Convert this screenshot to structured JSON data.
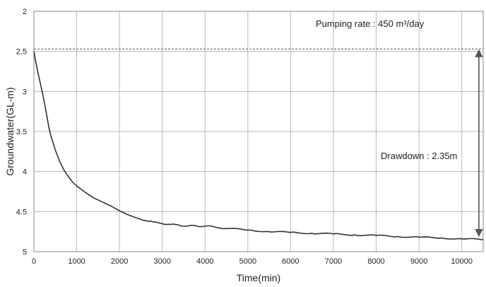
{
  "chart_data": {
    "type": "line",
    "title": "",
    "xlabel": "Time(min)",
    "ylabel": "Groundwater(GL-m)",
    "xlim": [
      0,
      10500
    ],
    "ylim": [
      2,
      5
    ],
    "y_inverted": true,
    "grid": true,
    "x_ticks": [
      "0",
      "1000",
      "2000",
      "3000",
      "4000",
      "5000",
      "6000",
      "7000",
      "8000",
      "9000",
      "10000"
    ],
    "y_ticks": [
      "2",
      "2.5",
      "3",
      "3.5",
      "4",
      "4.5",
      "5"
    ],
    "series": [
      {
        "name": "",
        "color": "#333333",
        "x": [
          0,
          50,
          100,
          150,
          200,
          250,
          300,
          350,
          400,
          500,
          600,
          700,
          800,
          900,
          1000,
          1200,
          1400,
          1600,
          1800,
          2000,
          2200,
          2400,
          2600,
          2800,
          3000,
          3200,
          3400,
          3600,
          3800,
          4000,
          4200,
          4500,
          5000,
          5500,
          6000,
          6500,
          7000,
          7500,
          8000,
          8500,
          9000,
          9500,
          10000,
          10500
        ],
        "y": [
          2.5,
          2.65,
          2.78,
          2.9,
          3.02,
          3.15,
          3.3,
          3.45,
          3.56,
          3.73,
          3.87,
          3.98,
          4.06,
          4.13,
          4.18,
          4.26,
          4.33,
          4.38,
          4.43,
          4.49,
          4.54,
          4.58,
          4.61,
          4.63,
          4.65,
          4.66,
          4.67,
          4.68,
          4.68,
          4.68,
          4.69,
          4.71,
          4.73,
          4.75,
          4.76,
          4.77,
          4.78,
          4.79,
          4.8,
          4.81,
          4.82,
          4.83,
          4.84,
          4.85
        ]
      }
    ],
    "reference_line": {
      "y": 2.47,
      "style": "dashed",
      "color": "#555555"
    },
    "annotations": {
      "pumping_rate": "Pumping rate : 450 m³/day",
      "drawdown": "Drawdown : 2.35m",
      "drawdown_arrow": {
        "x": 10400,
        "y_from": 2.47,
        "y_to": 4.82
      }
    }
  }
}
